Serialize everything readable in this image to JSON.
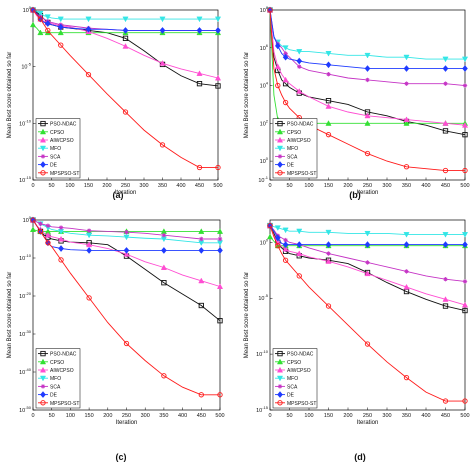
{
  "legend_labels": [
    "PSO-NDAC",
    "CPSO",
    "AIWCPSO",
    "MFO",
    "SCA",
    "DE",
    "MPSPSO-ST"
  ],
  "series_colors": [
    "#111111",
    "#33e033",
    "#ff4dd2",
    "#33e6e6",
    "#c533c5",
    "#1f3bff",
    "#ff1a1a"
  ],
  "series_markers": [
    "square",
    "triangle",
    "triangle",
    "triangle-down",
    "star",
    "diamond",
    "circle"
  ],
  "chart_data": [
    {
      "type": "line",
      "panel_label": "(a)",
      "xlabel": "Iteration",
      "ylabel": "Mean Best score obtained so far",
      "y_scale": "log",
      "xlim": [
        0,
        500
      ],
      "x_ticks": [
        0,
        50,
        100,
        150,
        200,
        250,
        300,
        350,
        400,
        450,
        500
      ],
      "ylim_exp": [
        -15,
        0
      ],
      "y_ticks": [
        {
          "exp": 0,
          "label": "10^0"
        },
        {
          "exp": -5,
          "label": "10^-5"
        },
        {
          "exp": -10,
          "label": "10^-10"
        },
        {
          "exp": -15,
          "label": "10^-15"
        }
      ],
      "legend_position": "bottom-left",
      "x": [
        0,
        10,
        20,
        30,
        40,
        50,
        75,
        100,
        150,
        200,
        250,
        300,
        350,
        400,
        450,
        500
      ],
      "series": [
        {
          "name": "PSO-NDAC",
          "values": [
            0,
            -0.2,
            -0.5,
            -0.8,
            -1.1,
            -1.3,
            -1.5,
            -1.6,
            -1.8,
            -2.0,
            -2.5,
            -3.6,
            -4.8,
            -5.8,
            -6.5,
            -6.7
          ]
        },
        {
          "name": "CPSO",
          "values": [
            -1.3,
            -1.6,
            -2.0,
            -2.0,
            -2.0,
            -2.0,
            -2.0,
            -2.0,
            -2.0,
            -2.0,
            -2.0,
            -2.0,
            -2.0,
            -2.0,
            -2.0,
            -2.0
          ]
        },
        {
          "name": "AIWCPSO",
          "values": [
            0,
            -0.5,
            -0.8,
            -1.0,
            -1.1,
            -1.2,
            -1.4,
            -1.5,
            -1.9,
            -2.5,
            -3.2,
            -4.0,
            -4.7,
            -5.2,
            -5.6,
            -6.0
          ]
        },
        {
          "name": "MFO",
          "values": [
            0,
            -0.1,
            -0.3,
            -0.5,
            -0.6,
            -0.7,
            -0.8,
            -0.8,
            -0.8,
            -0.8,
            -0.8,
            -0.8,
            -0.8,
            -0.8,
            -0.8,
            -0.8
          ]
        },
        {
          "name": "SCA",
          "values": [
            0,
            -0.3,
            -0.6,
            -0.8,
            -1.0,
            -1.1,
            -1.3,
            -1.4,
            -1.6,
            -1.7,
            -1.8,
            -1.8,
            -1.8,
            -1.8,
            -1.8,
            -1.8
          ]
        },
        {
          "name": "DE",
          "values": [
            0,
            -0.3,
            -0.8,
            -1.1,
            -1.2,
            -1.3,
            -1.5,
            -1.6,
            -1.7,
            -1.7,
            -1.8,
            -1.8,
            -1.8,
            -1.8,
            -1.8,
            -1.8
          ]
        },
        {
          "name": "MPSPSO-ST",
          "values": [
            0,
            -0.4,
            -0.8,
            -1.3,
            -1.8,
            -2.2,
            -3.1,
            -4.0,
            -5.7,
            -7.4,
            -9.0,
            -10.6,
            -11.9,
            -13.0,
            -13.9,
            -13.9
          ]
        }
      ]
    },
    {
      "type": "line",
      "panel_label": "(b)",
      "xlabel": "Iteration",
      "ylabel": "Mean Best score obtained so far",
      "y_scale": "log",
      "xlim": [
        0,
        500
      ],
      "x_ticks": [
        0,
        50,
        100,
        150,
        200,
        250,
        300,
        350,
        400,
        450,
        500
      ],
      "ylim_exp": [
        -1,
        8
      ],
      "y_ticks": [
        {
          "exp": 8,
          "label": "10^8"
        },
        {
          "exp": 6,
          "label": "10^6"
        },
        {
          "exp": 4,
          "label": "10^4"
        },
        {
          "exp": 2,
          "label": "10^2"
        },
        {
          "exp": 0,
          "label": "10^0"
        },
        {
          "exp": -1,
          "label": "10^-1"
        }
      ],
      "legend_position": "bottom-left",
      "x": [
        0,
        10,
        20,
        30,
        40,
        50,
        75,
        100,
        150,
        200,
        250,
        300,
        350,
        400,
        450,
        500
      ],
      "series": [
        {
          "name": "PSO-NDAC",
          "values": [
            8,
            5.5,
            4.8,
            4.3,
            4.1,
            3.9,
            3.6,
            3.4,
            3.2,
            3.0,
            2.6,
            2.4,
            2.1,
            1.9,
            1.6,
            1.4
          ]
        },
        {
          "name": "CPSO",
          "values": [
            8,
            3.5,
            2.2,
            2.0,
            2.0,
            2.0,
            2.0,
            2.0,
            2.0,
            2.0,
            2.0,
            2.0,
            2.0,
            2.0,
            2.0,
            2.0
          ]
        },
        {
          "name": "AIWCPSO",
          "values": [
            8,
            5.8,
            5.0,
            4.6,
            4.3,
            4.1,
            3.7,
            3.4,
            2.9,
            2.6,
            2.4,
            2.3,
            2.2,
            2.1,
            2.0,
            1.9
          ]
        },
        {
          "name": "MFO",
          "values": [
            8,
            6.5,
            6.3,
            6.1,
            6.0,
            5.9,
            5.8,
            5.8,
            5.7,
            5.6,
            5.6,
            5.5,
            5.5,
            5.4,
            5.4,
            5.4
          ]
        },
        {
          "name": "SCA",
          "values": [
            8,
            6.6,
            6.2,
            6.0,
            5.7,
            5.5,
            5.0,
            4.8,
            4.6,
            4.4,
            4.3,
            4.2,
            4.1,
            4.1,
            4.1,
            4.0
          ]
        },
        {
          "name": "DE",
          "values": [
            8,
            6.6,
            6.1,
            5.7,
            5.5,
            5.4,
            5.3,
            5.2,
            5.1,
            5.0,
            4.9,
            4.9,
            4.9,
            4.9,
            4.9,
            4.9
          ]
        },
        {
          "name": "MPSPSO-ST",
          "values": [
            8,
            4.9,
            4.0,
            3.5,
            3.1,
            2.8,
            2.3,
            1.9,
            1.4,
            0.9,
            0.4,
            0.0,
            -0.3,
            -0.4,
            -0.5,
            -0.5
          ]
        }
      ]
    },
    {
      "type": "line",
      "panel_label": "(c)",
      "xlabel": "Iteration",
      "ylabel": "Mean Best score obtained so far",
      "y_scale": "log",
      "xlim": [
        0,
        500
      ],
      "x_ticks": [
        0,
        50,
        100,
        150,
        200,
        250,
        300,
        350,
        400,
        450,
        500
      ],
      "ylim_exp": [
        -50,
        0
      ],
      "y_ticks": [
        {
          "exp": 0,
          "label": "10^0"
        },
        {
          "exp": -10,
          "label": "10^-10"
        },
        {
          "exp": -20,
          "label": "10^-20"
        },
        {
          "exp": -30,
          "label": "10^-30"
        },
        {
          "exp": -40,
          "label": "10^-40"
        },
        {
          "exp": -50,
          "label": "10^-50"
        }
      ],
      "legend_position": "bottom-left",
      "x": [
        0,
        10,
        20,
        30,
        40,
        50,
        75,
        100,
        150,
        200,
        250,
        300,
        350,
        400,
        450,
        500
      ],
      "series": [
        {
          "name": "PSO-NDAC",
          "values": [
            0,
            -1.5,
            -3.0,
            -4.0,
            -4.5,
            -5.0,
            -5.5,
            -5.8,
            -6.0,
            -6.5,
            -9.5,
            -13.0,
            -16.5,
            -19.5,
            -22.5,
            -26.5
          ]
        },
        {
          "name": "CPSO",
          "values": [
            -2.5,
            -2.8,
            -3.0,
            -3.0,
            -3.0,
            -3.0,
            -3.0,
            -3.0,
            -3.0,
            -3.0,
            -3.0,
            -3.0,
            -3.0,
            -3.0,
            -3.0,
            -3.0
          ]
        },
        {
          "name": "AIWCPSO",
          "values": [
            0,
            -1.5,
            -2.5,
            -3.5,
            -4.0,
            -4.4,
            -5.0,
            -5.8,
            -6.5,
            -7.5,
            -9.0,
            -11.0,
            -12.5,
            -14.5,
            -16.0,
            -17.5
          ]
        },
        {
          "name": "MFO",
          "values": [
            0,
            -0.5,
            -1.0,
            -1.5,
            -2.0,
            -2.5,
            -3.0,
            -3.5,
            -4.0,
            -4.2,
            -4.5,
            -4.8,
            -5.0,
            -5.5,
            -6.0,
            -6.0
          ]
        },
        {
          "name": "SCA",
          "values": [
            0,
            -0.5,
            -1.0,
            -1.2,
            -1.5,
            -1.8,
            -2.0,
            -2.2,
            -2.8,
            -3.0,
            -3.2,
            -3.5,
            -4.0,
            -4.5,
            -5.0,
            -5.0
          ]
        },
        {
          "name": "DE",
          "values": [
            0,
            -1.5,
            -3.0,
            -4.5,
            -6.0,
            -7.0,
            -7.5,
            -7.8,
            -8.0,
            -8.0,
            -8.0,
            -8.0,
            -8.0,
            -8.0,
            -8.0,
            -8.0
          ]
        },
        {
          "name": "MPSPSO-ST",
          "values": [
            0,
            -1.5,
            -3.0,
            -4.5,
            -6.0,
            -7.0,
            -10.5,
            -14.0,
            -20.5,
            -27.0,
            -32.5,
            -37.0,
            -41.0,
            -44.0,
            -46.0,
            -46.0
          ]
        }
      ]
    },
    {
      "type": "line",
      "panel_label": "(d)",
      "xlabel": "Iteration",
      "ylabel": "Mean Best score obtained so far",
      "y_scale": "log",
      "xlim": [
        0,
        500
      ],
      "x_ticks": [
        0,
        50,
        100,
        150,
        200,
        250,
        300,
        350,
        400,
        450,
        500
      ],
      "ylim_exp": [
        -15,
        2
      ],
      "y_ticks": [
        {
          "exp": 0,
          "label": "10^0"
        },
        {
          "exp": -5,
          "label": "10^-5"
        },
        {
          "exp": -10,
          "label": "10^-10"
        },
        {
          "exp": -15,
          "label": "10^-15"
        }
      ],
      "legend_position": "bottom-left",
      "x": [
        0,
        10,
        20,
        30,
        40,
        50,
        75,
        100,
        150,
        200,
        250,
        300,
        350,
        400,
        450,
        500
      ],
      "series": [
        {
          "name": "PSO-NDAC",
          "values": [
            1.5,
            0.8,
            0.0,
            -0.5,
            -0.8,
            -1.0,
            -1.2,
            -1.4,
            -1.6,
            -1.9,
            -2.7,
            -3.6,
            -4.4,
            -5.1,
            -5.7,
            -6.1
          ]
        },
        {
          "name": "CPSO",
          "values": [
            0.5,
            0.1,
            -0.3,
            -0.3,
            -0.3,
            -0.3,
            -0.3,
            -0.3,
            -0.3,
            -0.3,
            -0.3,
            -0.3,
            -0.3,
            -0.3,
            -0.3,
            -0.3
          ]
        },
        {
          "name": "AIWCPSO",
          "values": [
            1.5,
            0.6,
            0.0,
            -0.4,
            -0.6,
            -0.8,
            -1.0,
            -1.3,
            -1.7,
            -2.2,
            -2.8,
            -3.4,
            -4.0,
            -4.6,
            -5.1,
            -5.6
          ]
        },
        {
          "name": "MFO",
          "values": [
            1.5,
            1.4,
            1.3,
            1.2,
            1.1,
            1.0,
            1.0,
            0.9,
            0.9,
            0.8,
            0.8,
            0.8,
            0.7,
            0.7,
            0.7,
            0.7
          ]
        },
        {
          "name": "SCA",
          "values": [
            1.5,
            1.1,
            0.6,
            0.4,
            0.2,
            0.0,
            -0.2,
            -0.5,
            -1.0,
            -1.4,
            -1.8,
            -2.2,
            -2.6,
            -3.0,
            -3.3,
            -3.5
          ]
        },
        {
          "name": "DE",
          "values": [
            1.5,
            1.0,
            0.4,
            -0.1,
            -0.2,
            -0.2,
            -0.2,
            -0.2,
            -0.2,
            -0.2,
            -0.2,
            -0.2,
            -0.2,
            -0.2,
            -0.2,
            -0.2
          ]
        },
        {
          "name": "MPSPSO-ST",
          "values": [
            1.5,
            0.5,
            -0.3,
            -1.0,
            -1.6,
            -2.0,
            -3.0,
            -4.0,
            -5.7,
            -7.4,
            -9.1,
            -10.7,
            -12.1,
            -13.4,
            -14.2,
            -14.2
          ]
        }
      ]
    }
  ]
}
